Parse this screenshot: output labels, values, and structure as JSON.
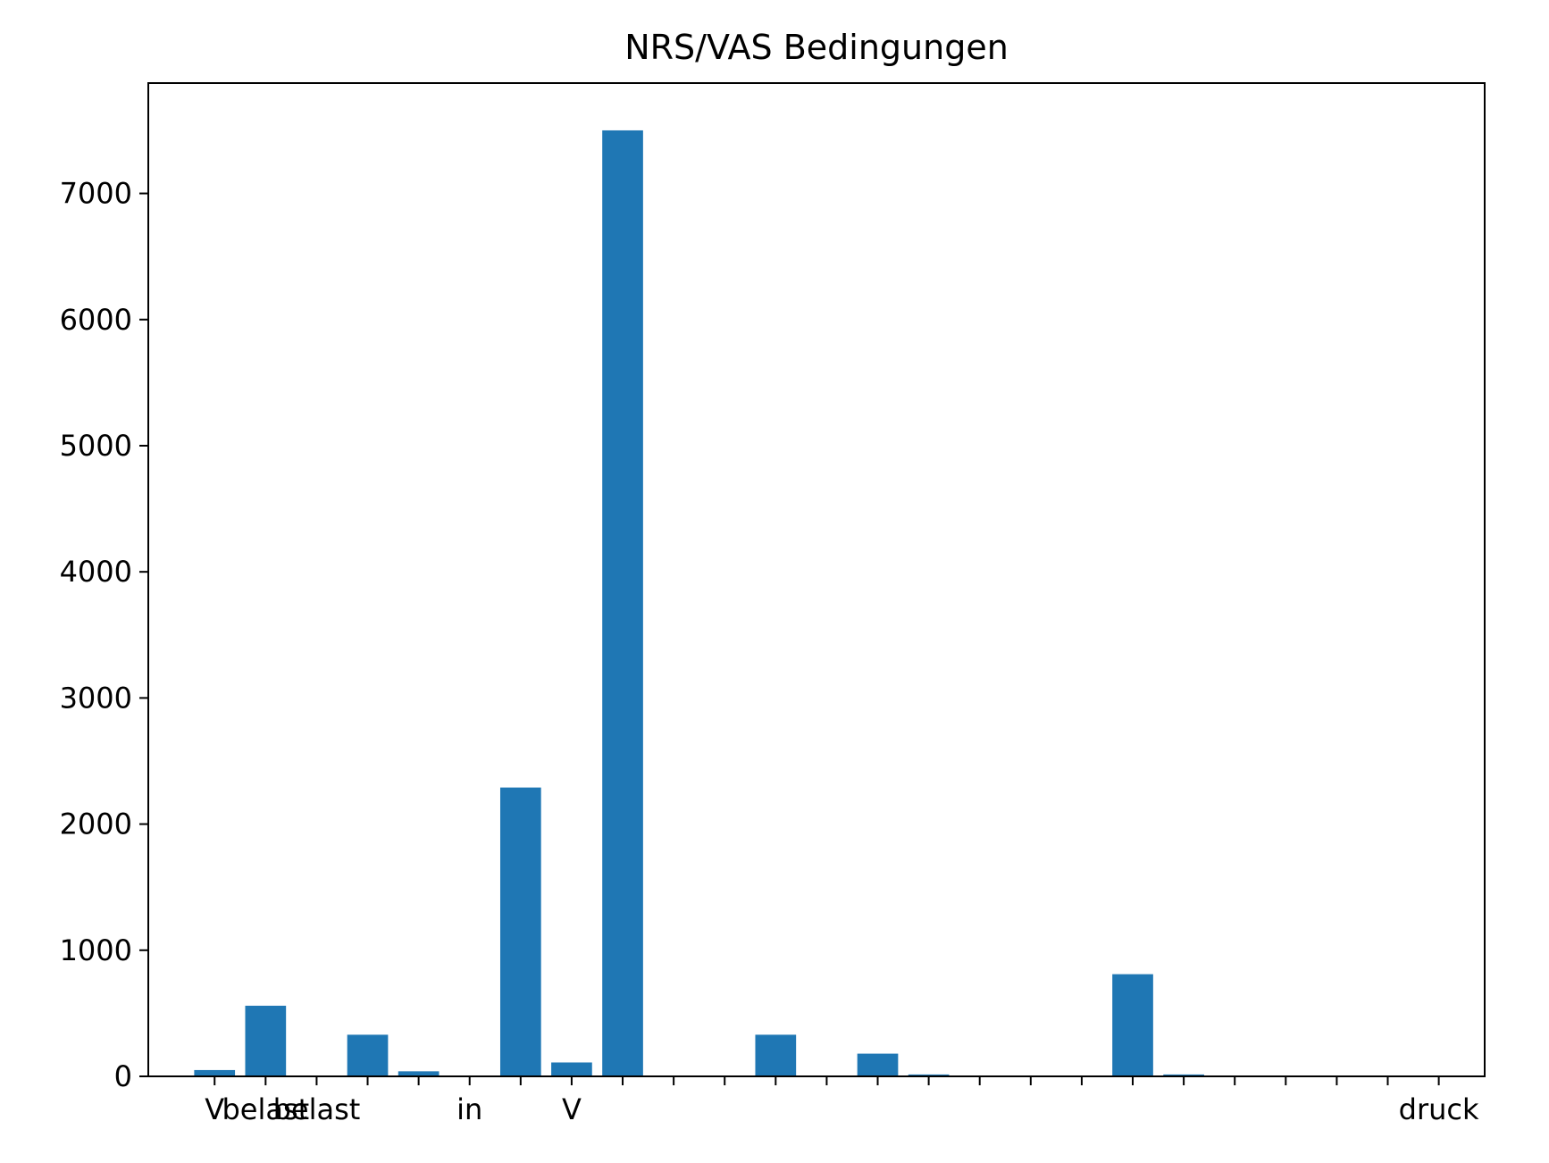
{
  "chart_data": {
    "type": "bar",
    "title": "NRS/VAS Bedingungen",
    "xlabel": "",
    "ylabel": "",
    "color": "#1f77b4",
    "grid": false,
    "legend": "none",
    "xlim": [
      -1.3,
      24.9
    ],
    "ylim": [
      0,
      7875
    ],
    "yticks": [
      0,
      1000,
      2000,
      3000,
      4000,
      5000,
      6000,
      7000
    ],
    "ytick_labels": [
      "0",
      "1000",
      "2000",
      "3000",
      "4000",
      "5000",
      "6000",
      "7000"
    ],
    "categories": [
      "V",
      "belast",
      "belast",
      "",
      "",
      "in",
      "",
      "V",
      "",
      "",
      "",
      "",
      "",
      "",
      "",
      "",
      "",
      "",
      "",
      "",
      "",
      "",
      "",
      "",
      "druck"
    ],
    "values": [
      50,
      560,
      0,
      330,
      40,
      0,
      2290,
      110,
      7500,
      0,
      0,
      330,
      0,
      180,
      15,
      0,
      0,
      0,
      810,
      15,
      0,
      0,
      0,
      0,
      0
    ]
  }
}
